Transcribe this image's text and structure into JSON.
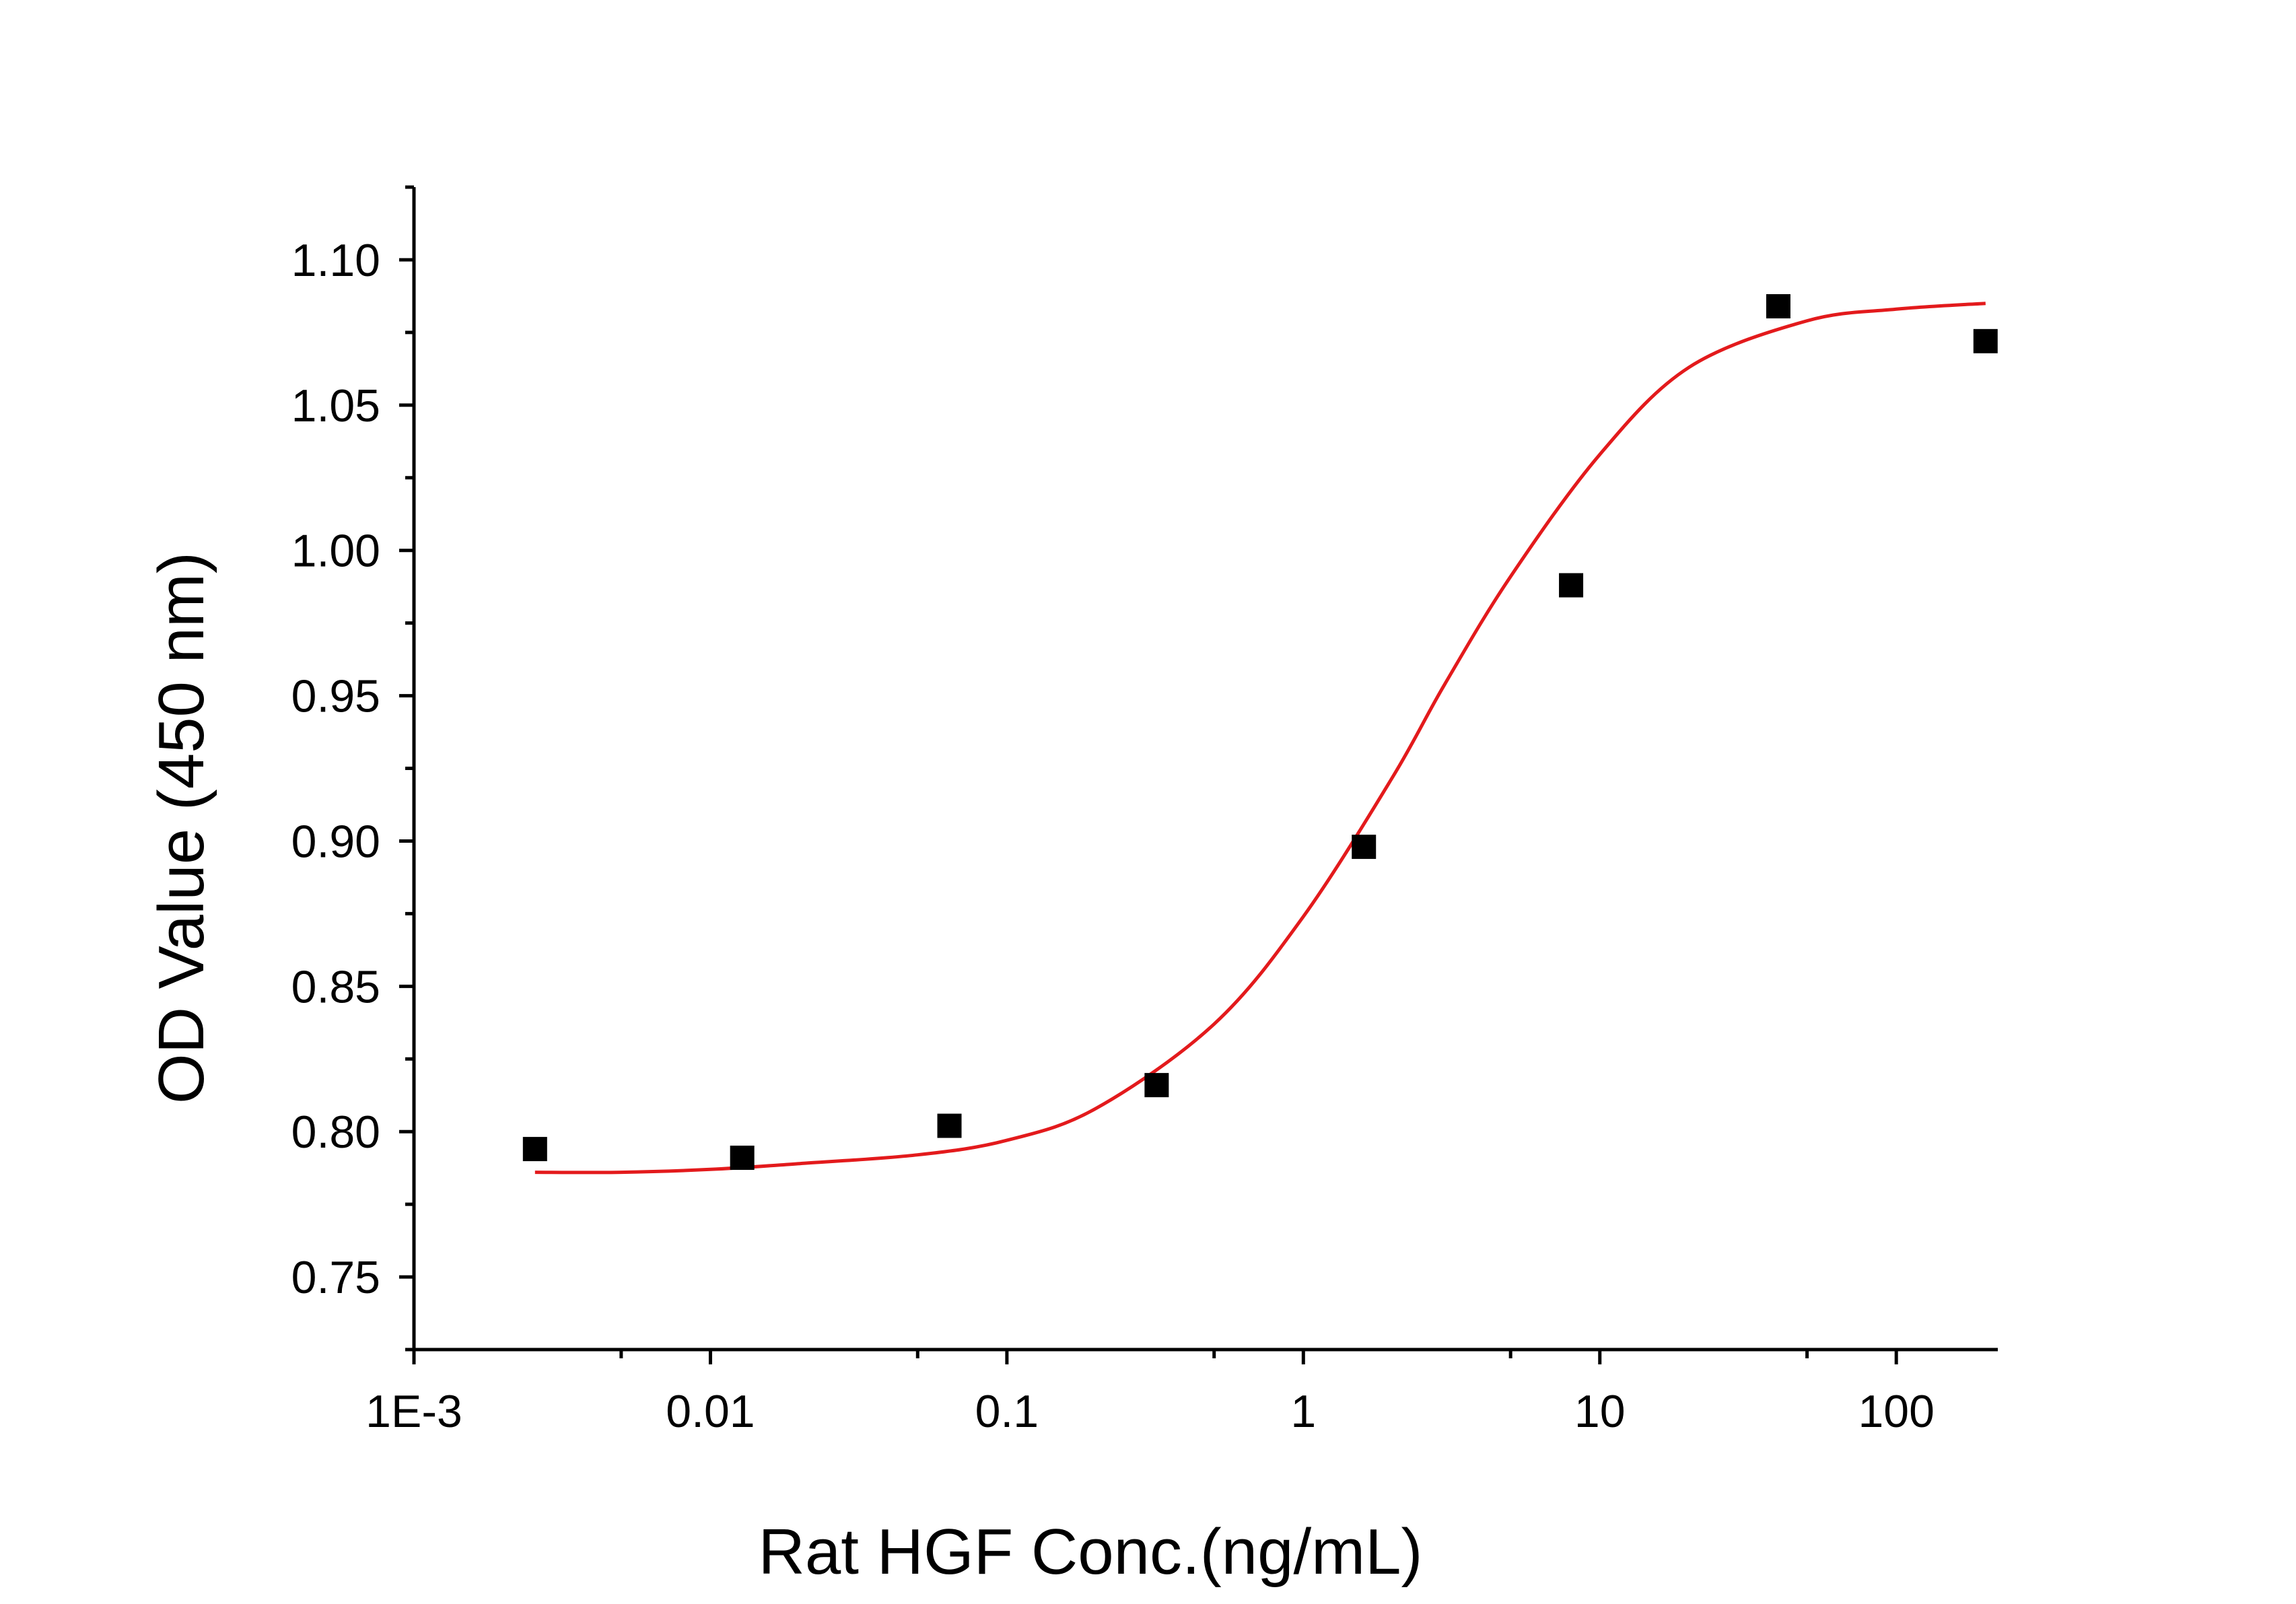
{
  "chart_data": {
    "type": "scatter",
    "xlabel": "Rat HGF Conc.(ng/mL)",
    "ylabel": "OD Value (450 nm)",
    "x_scale": "log",
    "xlim": [
      0.001,
      220
    ],
    "ylim": [
      0.725,
      1.125
    ],
    "x_ticks": [
      {
        "value": 0.001,
        "label": "1E-3"
      },
      {
        "value": 0.01,
        "label": "0.01"
      },
      {
        "value": 0.1,
        "label": "0.1"
      },
      {
        "value": 1,
        "label": "1"
      },
      {
        "value": 10,
        "label": "10"
      },
      {
        "value": 100,
        "label": "100"
      }
    ],
    "y_ticks": [
      {
        "value": 0.75,
        "label": "0.75"
      },
      {
        "value": 0.8,
        "label": "0.80"
      },
      {
        "value": 0.85,
        "label": "0.85"
      },
      {
        "value": 0.9,
        "label": "0.90"
      },
      {
        "value": 0.95,
        "label": "0.95"
      },
      {
        "value": 1.0,
        "label": "1.00"
      },
      {
        "value": 1.05,
        "label": "1.05"
      },
      {
        "value": 1.1,
        "label": "1.10"
      }
    ],
    "series": [
      {
        "type": "scatter",
        "marker": "square",
        "color": "#000000",
        "x": [
          0.00256,
          0.0128,
          0.064,
          0.32,
          1.6,
          8,
          40,
          200
        ],
        "y": [
          0.794,
          0.791,
          0.802,
          0.816,
          0.898,
          0.988,
          1.084,
          1.072
        ]
      },
      {
        "type": "fit",
        "model": "four-parameter logistic",
        "color": "#e31a1c",
        "x": [
          0.00256,
          0.005,
          0.01,
          0.02,
          0.05,
          0.1,
          0.2,
          0.5,
          1,
          2,
          3,
          5,
          10,
          20,
          50,
          100,
          200
        ],
        "y": [
          0.786,
          0.786,
          0.787,
          0.789,
          0.792,
          0.797,
          0.808,
          0.837,
          0.874,
          0.922,
          0.954,
          0.991,
          1.033,
          1.063,
          1.079,
          1.083,
          1.085
        ]
      }
    ],
    "grid": false,
    "legend": "none"
  }
}
